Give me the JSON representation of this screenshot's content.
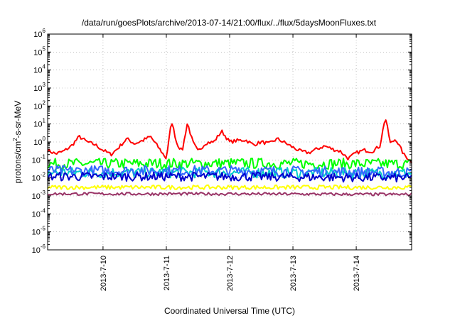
{
  "chart_data": {
    "type": "line",
    "title": "/data/run/goesPlots/archive/2013-07-14/21:00/flux/../flux/5daysMoonFluxes.txt",
    "xlabel": "Coordinated Universal Time (UTC)",
    "ylabel": {
      "base": "protons/cm",
      "sup": "2",
      "rest": "-s-sr-MeV"
    },
    "y_scale": "log",
    "ylim_exp": [
      -6,
      6
    ],
    "y_ticks": [
      {
        "exp": -6,
        "label_base": "10",
        "label_exp": "-6"
      },
      {
        "exp": -5,
        "label_base": "10",
        "label_exp": "-5"
      },
      {
        "exp": -4,
        "label_base": "10",
        "label_exp": "-4"
      },
      {
        "exp": -3,
        "label_base": "10",
        "label_exp": "-3"
      },
      {
        "exp": -2,
        "label_base": "10",
        "label_exp": "-2"
      },
      {
        "exp": -1,
        "label_base": "10",
        "label_exp": "-1"
      },
      {
        "exp": 0,
        "label_base": "10",
        "label_exp": "0"
      },
      {
        "exp": 1,
        "label_base": "10",
        "label_exp": "1"
      },
      {
        "exp": 2,
        "label_base": "10",
        "label_exp": "2"
      },
      {
        "exp": 3,
        "label_base": "10",
        "label_exp": "3"
      },
      {
        "exp": 4,
        "label_base": "10",
        "label_exp": "4"
      },
      {
        "exp": 5,
        "label_base": "10",
        "label_exp": "5"
      },
      {
        "exp": 6,
        "label_base": "10",
        "label_exp": "6"
      }
    ],
    "xlim": [
      "2013-07-09 03:00",
      "2013-07-14 21:00"
    ],
    "x_ticks": [
      {
        "x": "2013-07-10 00:00",
        "label": "2013-7-10"
      },
      {
        "x": "2013-07-11 00:00",
        "label": "2013-7-11"
      },
      {
        "x": "2013-07-12 00:00",
        "label": "2013-7-12"
      },
      {
        "x": "2013-07-13 00:00",
        "label": "2013-7-13"
      },
      {
        "x": "2013-07-14 00:00",
        "label": "2013-7-14"
      }
    ],
    "grid": true,
    "legend": "none",
    "series": [
      {
        "color": "#ff0000",
        "noise": 0.1,
        "points": [
          [
            "2013-07-09 03:00",
            0.35
          ],
          [
            "2013-07-09 06:00",
            0.22
          ],
          [
            "2013-07-09 09:00",
            0.3
          ],
          [
            "2013-07-09 12:00",
            0.6
          ],
          [
            "2013-07-09 15:00",
            2.0
          ],
          [
            "2013-07-09 18:00",
            1.0
          ],
          [
            "2013-07-09 21:00",
            0.7
          ],
          [
            "2013-07-10 00:00",
            0.35
          ],
          [
            "2013-07-10 03:00",
            0.2
          ],
          [
            "2013-07-10 06:00",
            0.5
          ],
          [
            "2013-07-10 09:00",
            1.5
          ],
          [
            "2013-07-10 12:00",
            0.8
          ],
          [
            "2013-07-10 15:00",
            1.2
          ],
          [
            "2013-07-10 18:00",
            2.0
          ],
          [
            "2013-07-10 21:00",
            0.5
          ],
          [
            "2013-07-11 00:00",
            0.12
          ],
          [
            "2013-07-11 02:00",
            15
          ],
          [
            "2013-07-11 04:00",
            0.8
          ],
          [
            "2013-07-11 06:00",
            0.3
          ],
          [
            "2013-07-11 08:00",
            12
          ],
          [
            "2013-07-11 10:00",
            1.0
          ],
          [
            "2013-07-11 12:00",
            0.3
          ],
          [
            "2013-07-11 15:00",
            0.9
          ],
          [
            "2013-07-11 18:00",
            1.0
          ],
          [
            "2013-07-11 21:00",
            4.0
          ],
          [
            "2013-07-12 00:00",
            1.0
          ],
          [
            "2013-07-12 03:00",
            1.2
          ],
          [
            "2013-07-12 06:00",
            1.3
          ],
          [
            "2013-07-12 09:00",
            0.7
          ],
          [
            "2013-07-12 12:00",
            1.0
          ],
          [
            "2013-07-12 15:00",
            0.8
          ],
          [
            "2013-07-12 18:00",
            1.5
          ],
          [
            "2013-07-12 21:00",
            0.9
          ],
          [
            "2013-07-13 00:00",
            0.5
          ],
          [
            "2013-07-13 03:00",
            0.3
          ],
          [
            "2013-07-13 06:00",
            0.25
          ],
          [
            "2013-07-13 09:00",
            0.4
          ],
          [
            "2013-07-13 12:00",
            0.6
          ],
          [
            "2013-07-13 15:00",
            0.4
          ],
          [
            "2013-07-13 18:00",
            0.3
          ],
          [
            "2013-07-13 21:00",
            0.12
          ],
          [
            "2013-07-14 00:00",
            0.25
          ],
          [
            "2013-07-14 03:00",
            0.35
          ],
          [
            "2013-07-14 06:00",
            0.3
          ],
          [
            "2013-07-14 09:00",
            0.6
          ],
          [
            "2013-07-14 11:00",
            25
          ],
          [
            "2013-07-14 13:00",
            0.8
          ],
          [
            "2013-07-14 15:00",
            1.5
          ],
          [
            "2013-07-14 18:00",
            0.2
          ],
          [
            "2013-07-14 21:00",
            0.08
          ]
        ]
      },
      {
        "color": "#00ff00",
        "noise": 0.3,
        "points": [
          [
            "2013-07-09 03:00",
            0.06
          ],
          [
            "2013-07-12 00:00",
            0.065
          ],
          [
            "2013-07-14 21:00",
            0.06
          ]
        ]
      },
      {
        "color": "#00cccc",
        "noise": 0.3,
        "points": [
          [
            "2013-07-09 03:00",
            0.02
          ],
          [
            "2013-07-12 00:00",
            0.02
          ],
          [
            "2013-07-14 21:00",
            0.018
          ]
        ]
      },
      {
        "color": "#3366ff",
        "noise": 0.3,
        "points": [
          [
            "2013-07-09 03:00",
            0.025
          ],
          [
            "2013-07-12 00:00",
            0.025
          ],
          [
            "2013-07-14 21:00",
            0.02
          ]
        ]
      },
      {
        "color": "#0000cc",
        "noise": 0.25,
        "points": [
          [
            "2013-07-09 03:00",
            0.012
          ],
          [
            "2013-07-12 00:00",
            0.012
          ],
          [
            "2013-07-14 21:00",
            0.01
          ]
        ]
      },
      {
        "color": "#ffff00",
        "noise": 0.12,
        "points": [
          [
            "2013-07-09 03:00",
            0.003
          ],
          [
            "2013-07-12 00:00",
            0.003
          ],
          [
            "2013-07-14 21:00",
            0.003
          ]
        ]
      },
      {
        "color": "#993366",
        "noise": 0.08,
        "points": [
          [
            "2013-07-09 03:00",
            0.0013
          ],
          [
            "2013-07-12 00:00",
            0.0013
          ],
          [
            "2013-07-14 21:00",
            0.0012
          ]
        ]
      }
    ]
  }
}
